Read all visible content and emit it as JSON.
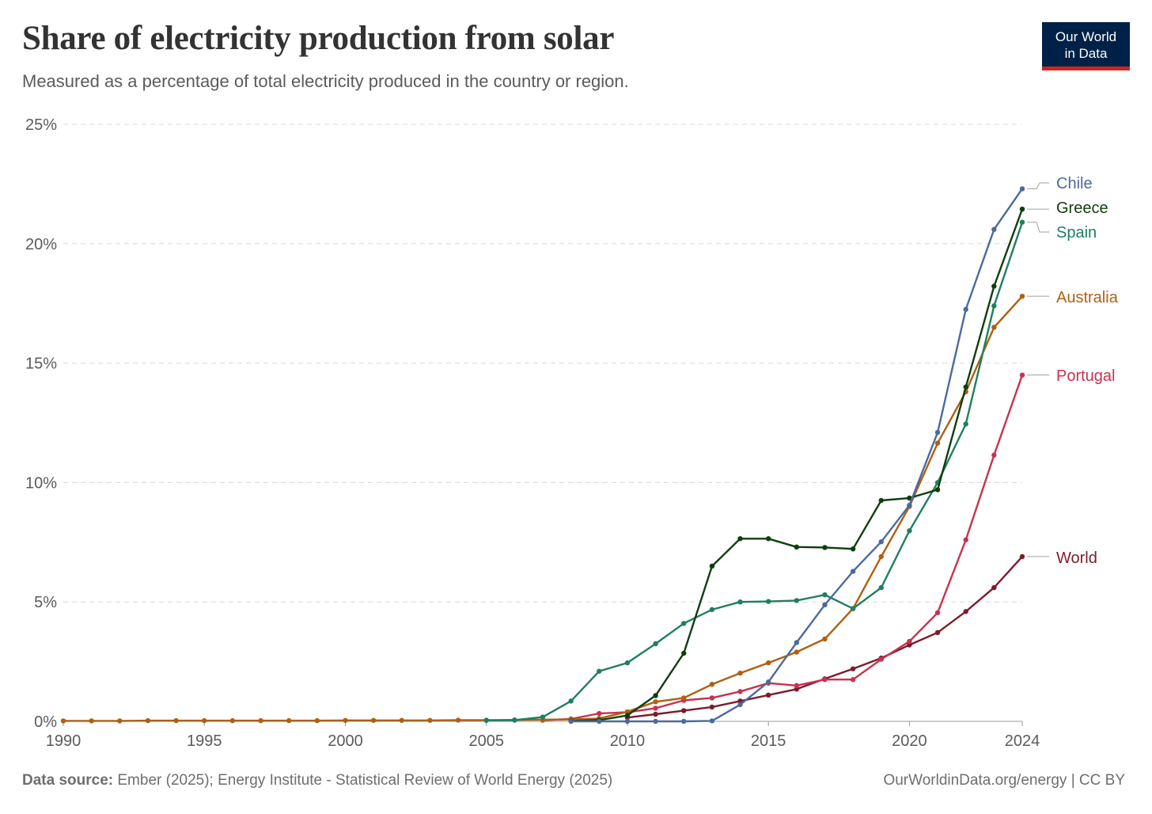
{
  "header": {
    "title": "Share of electricity production from solar",
    "subtitle": "Measured as a percentage of total electricity produced in the country or region."
  },
  "logo": {
    "line1": "Our World",
    "line2": "in Data"
  },
  "footer": {
    "source_label": "Data source:",
    "source_text": " Ember (2025); Energy Institute - Statistical Review of World Energy (2025)",
    "credit": "OurWorldinData.org/energy | CC BY"
  },
  "colors": {
    "Chile": "#4c6a9c",
    "Greece": "#0e3e0e",
    "Spain": "#1f7f5f",
    "Australia": "#b05f10",
    "Portugal": "#c8324f",
    "World": "#7a1d2c",
    "grid": "#d8d8d8",
    "axis": "#5b5b5b"
  },
  "chart_data": {
    "type": "line",
    "title": "Share of electricity production from solar",
    "xlabel": "",
    "ylabel": "",
    "xlim": [
      1990,
      2024
    ],
    "ylim": [
      0,
      25
    ],
    "x_ticks": [
      1990,
      1995,
      2000,
      2005,
      2010,
      2015,
      2020,
      2024
    ],
    "y_ticks": [
      0,
      5,
      10,
      15,
      20,
      25
    ],
    "y_tick_suffix": "%",
    "grid": "horizontal dashed",
    "legend": "right (labels at line ends)",
    "series": [
      {
        "name": "World",
        "x": [
          2010,
          2011,
          2012,
          2013,
          2014,
          2015,
          2016,
          2017,
          2018,
          2019,
          2020,
          2021,
          2022,
          2023,
          2024
        ],
        "values": [
          0.16,
          0.3,
          0.45,
          0.6,
          0.85,
          1.1,
          1.35,
          1.78,
          2.2,
          2.65,
          3.2,
          3.72,
          4.6,
          5.6,
          6.9
        ]
      },
      {
        "name": "Portugal",
        "x": [
          2007,
          2008,
          2009,
          2010,
          2011,
          2012,
          2013,
          2014,
          2015,
          2016,
          2017,
          2018,
          2019,
          2020,
          2021,
          2022,
          2023,
          2024
        ],
        "values": [
          0.05,
          0.1,
          0.33,
          0.38,
          0.55,
          0.88,
          0.98,
          1.25,
          1.6,
          1.5,
          1.75,
          1.75,
          2.6,
          3.35,
          4.55,
          7.6,
          11.15,
          14.5
        ]
      },
      {
        "name": "Australia",
        "x": [
          1990,
          1991,
          1992,
          1993,
          1994,
          1995,
          1996,
          1997,
          1998,
          1999,
          2000,
          2001,
          2002,
          2003,
          2004,
          2005,
          2006,
          2007,
          2008,
          2009,
          2010,
          2011,
          2012,
          2013,
          2014,
          2015,
          2016,
          2017,
          2018,
          2019,
          2020,
          2021,
          2022,
          2023,
          2024
        ],
        "values": [
          0.02,
          0.02,
          0.02,
          0.03,
          0.03,
          0.03,
          0.03,
          0.03,
          0.03,
          0.03,
          0.04,
          0.04,
          0.04,
          0.04,
          0.05,
          0.05,
          0.06,
          0.07,
          0.08,
          0.12,
          0.4,
          0.82,
          0.98,
          1.55,
          2.02,
          2.45,
          2.9,
          3.45,
          4.72,
          6.9,
          9.0,
          11.65,
          13.8,
          16.5,
          17.8
        ]
      },
      {
        "name": "Spain",
        "x": [
          2005,
          2006,
          2007,
          2008,
          2009,
          2010,
          2011,
          2012,
          2013,
          2014,
          2015,
          2016,
          2017,
          2018,
          2019,
          2020,
          2021,
          2022,
          2023,
          2024
        ],
        "values": [
          0.04,
          0.05,
          0.18,
          0.85,
          2.1,
          2.45,
          3.25,
          4.1,
          4.68,
          5.0,
          5.02,
          5.06,
          5.3,
          4.72,
          5.6,
          7.98,
          10.0,
          12.45,
          17.4,
          20.9
        ]
      },
      {
        "name": "Greece",
        "x": [
          2008,
          2009,
          2010,
          2011,
          2012,
          2013,
          2014,
          2015,
          2016,
          2017,
          2018,
          2019,
          2020,
          2021,
          2022,
          2023,
          2024
        ],
        "values": [
          0.02,
          0.05,
          0.25,
          1.08,
          2.85,
          6.5,
          7.65,
          7.65,
          7.3,
          7.28,
          7.22,
          9.25,
          9.35,
          9.7,
          14.0,
          18.22,
          21.45
        ]
      },
      {
        "name": "Chile",
        "x": [
          2008,
          2009,
          2010,
          2011,
          2012,
          2013,
          2014,
          2015,
          2016,
          2017,
          2018,
          2019,
          2020,
          2021,
          2022,
          2023,
          2024
        ],
        "values": [
          0.0,
          0.0,
          0.0,
          0.0,
          0.0,
          0.02,
          0.7,
          1.65,
          3.3,
          4.88,
          6.28,
          7.52,
          9.05,
          12.1,
          17.25,
          20.6,
          22.3
        ]
      }
    ]
  }
}
